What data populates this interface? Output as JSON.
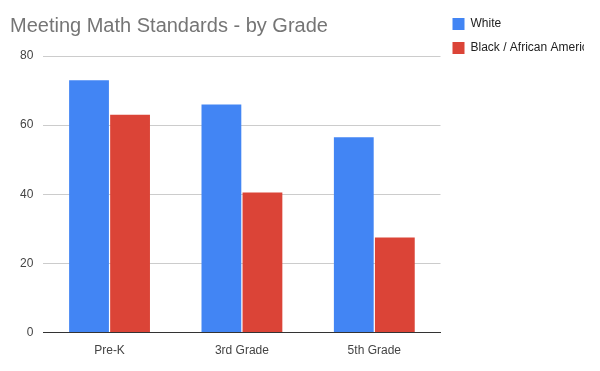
{
  "chart_data": {
    "type": "bar",
    "title": "Meeting Math Standards - by Grade",
    "categories": [
      "Pre-K",
      "3rd Grade",
      "5th Grade"
    ],
    "series": [
      {
        "name": "White",
        "color": "#4285f4",
        "values": [
          73,
          66,
          56.5
        ]
      },
      {
        "name": "Black / African American",
        "color": "#db4437",
        "values": [
          63,
          40.5,
          27.5
        ]
      }
    ],
    "ylim": [
      0,
      80
    ],
    "yticks": [
      0,
      20,
      40,
      60,
      80
    ],
    "grid": true,
    "legend": "right"
  }
}
